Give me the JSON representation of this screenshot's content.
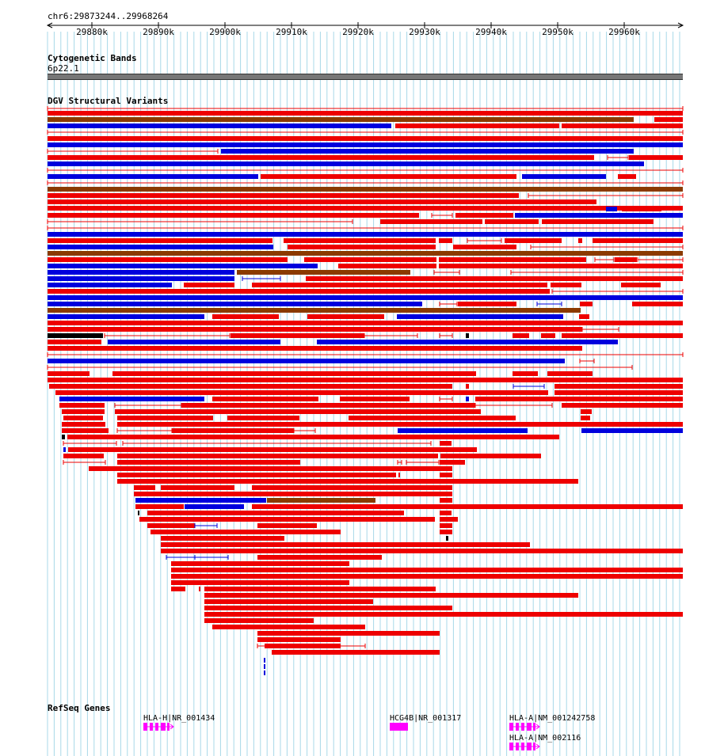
{
  "ruler": {
    "location": "chr6:29873244..29968264",
    "ticks": [
      "29880k",
      "29890k",
      "29900k",
      "29910k",
      "29920k",
      "29930k",
      "29940k",
      "29950k",
      "29960k"
    ]
  },
  "tracks": {
    "cytoband": {
      "title": "Cytogenetic Bands",
      "band": "6p22.1"
    },
    "dgv": {
      "title": "DGV Structural Variants"
    },
    "refseq": {
      "title": "RefSeq Genes",
      "genes": [
        {
          "label": "HLA-H|NR_001434"
        },
        {
          "label": "HCG4B|NR_001317"
        },
        {
          "label": "HLA-A|NM_001242758"
        },
        {
          "label": "HLA-A|NM_002116"
        }
      ]
    }
  },
  "colors": {
    "gain": "#ee0000",
    "loss": "#0000dd",
    "gain_loss": "#8b3a00",
    "other": "#000000",
    "gene": "#ff00ff",
    "grid": "#a8d8e8",
    "band": "#777777"
  }
}
